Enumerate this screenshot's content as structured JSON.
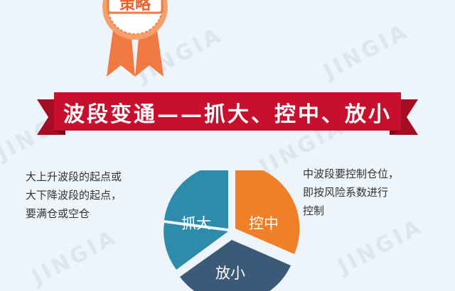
{
  "medal": {
    "label": "策略",
    "ribbon_color": "#f07a42",
    "badge_color": "#f5a06a"
  },
  "watermark": {
    "text": "JINGIA"
  },
  "banner": {
    "title": "波段变通——抓大、控中、放小",
    "color": "#c8102e"
  },
  "notes": {
    "left": [
      "大上升波段的起点或",
      "大下降波段的起点，",
      "要满仓或空仓"
    ],
    "right": [
      "中波段要控制仓位，",
      "即按风险系数进行",
      "控制"
    ]
  },
  "pie": {
    "segments": [
      {
        "label": "抓大",
        "color": "#2e8ba9"
      },
      {
        "label": "控中",
        "color": "#f07f2a"
      },
      {
        "label": "放小",
        "color": "#3a5a78"
      }
    ]
  }
}
